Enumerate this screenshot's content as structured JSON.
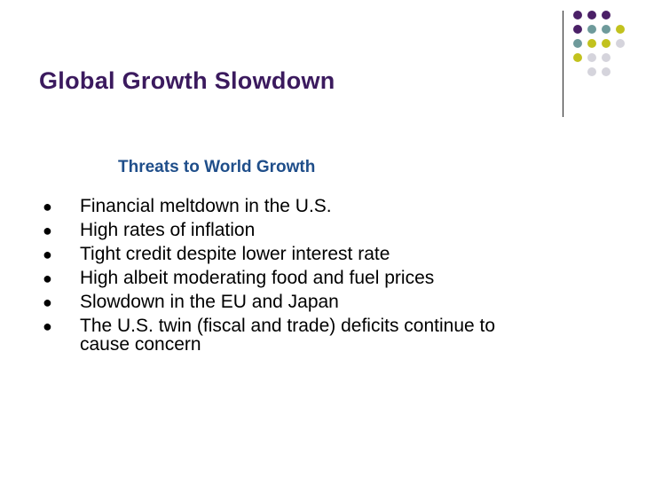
{
  "slide": {
    "title": "Global Growth Slowdown",
    "subtitle": "Threats to World Growth",
    "bullets": [
      "Financial meltdown in the U.S.",
      "High rates of inflation",
      "Tight credit despite lower interest rate",
      "High albeit moderating food and fuel prices",
      "Slowdown in the EU and Japan",
      "The U.S. twin (fiscal and trade) deficits continue to cause concern"
    ],
    "bullet_glyph": "●"
  },
  "theme": {
    "title_color": "#3b1a5e",
    "subtitle_color": "#1f4e8a",
    "dot_colors": {
      "purple": "#4b2067",
      "teal": "#6e9a9b",
      "olive": "#c2c21e",
      "gray": "#d5d4dc"
    },
    "dot_grid": [
      [
        "purple",
        "purple",
        "purple",
        ""
      ],
      [
        "purple",
        "teal",
        "teal",
        "olive"
      ],
      [
        "teal",
        "olive",
        "olive",
        "gray"
      ],
      [
        "olive",
        "gray",
        "gray",
        ""
      ],
      [
        "",
        "gray",
        "gray",
        ""
      ]
    ]
  }
}
